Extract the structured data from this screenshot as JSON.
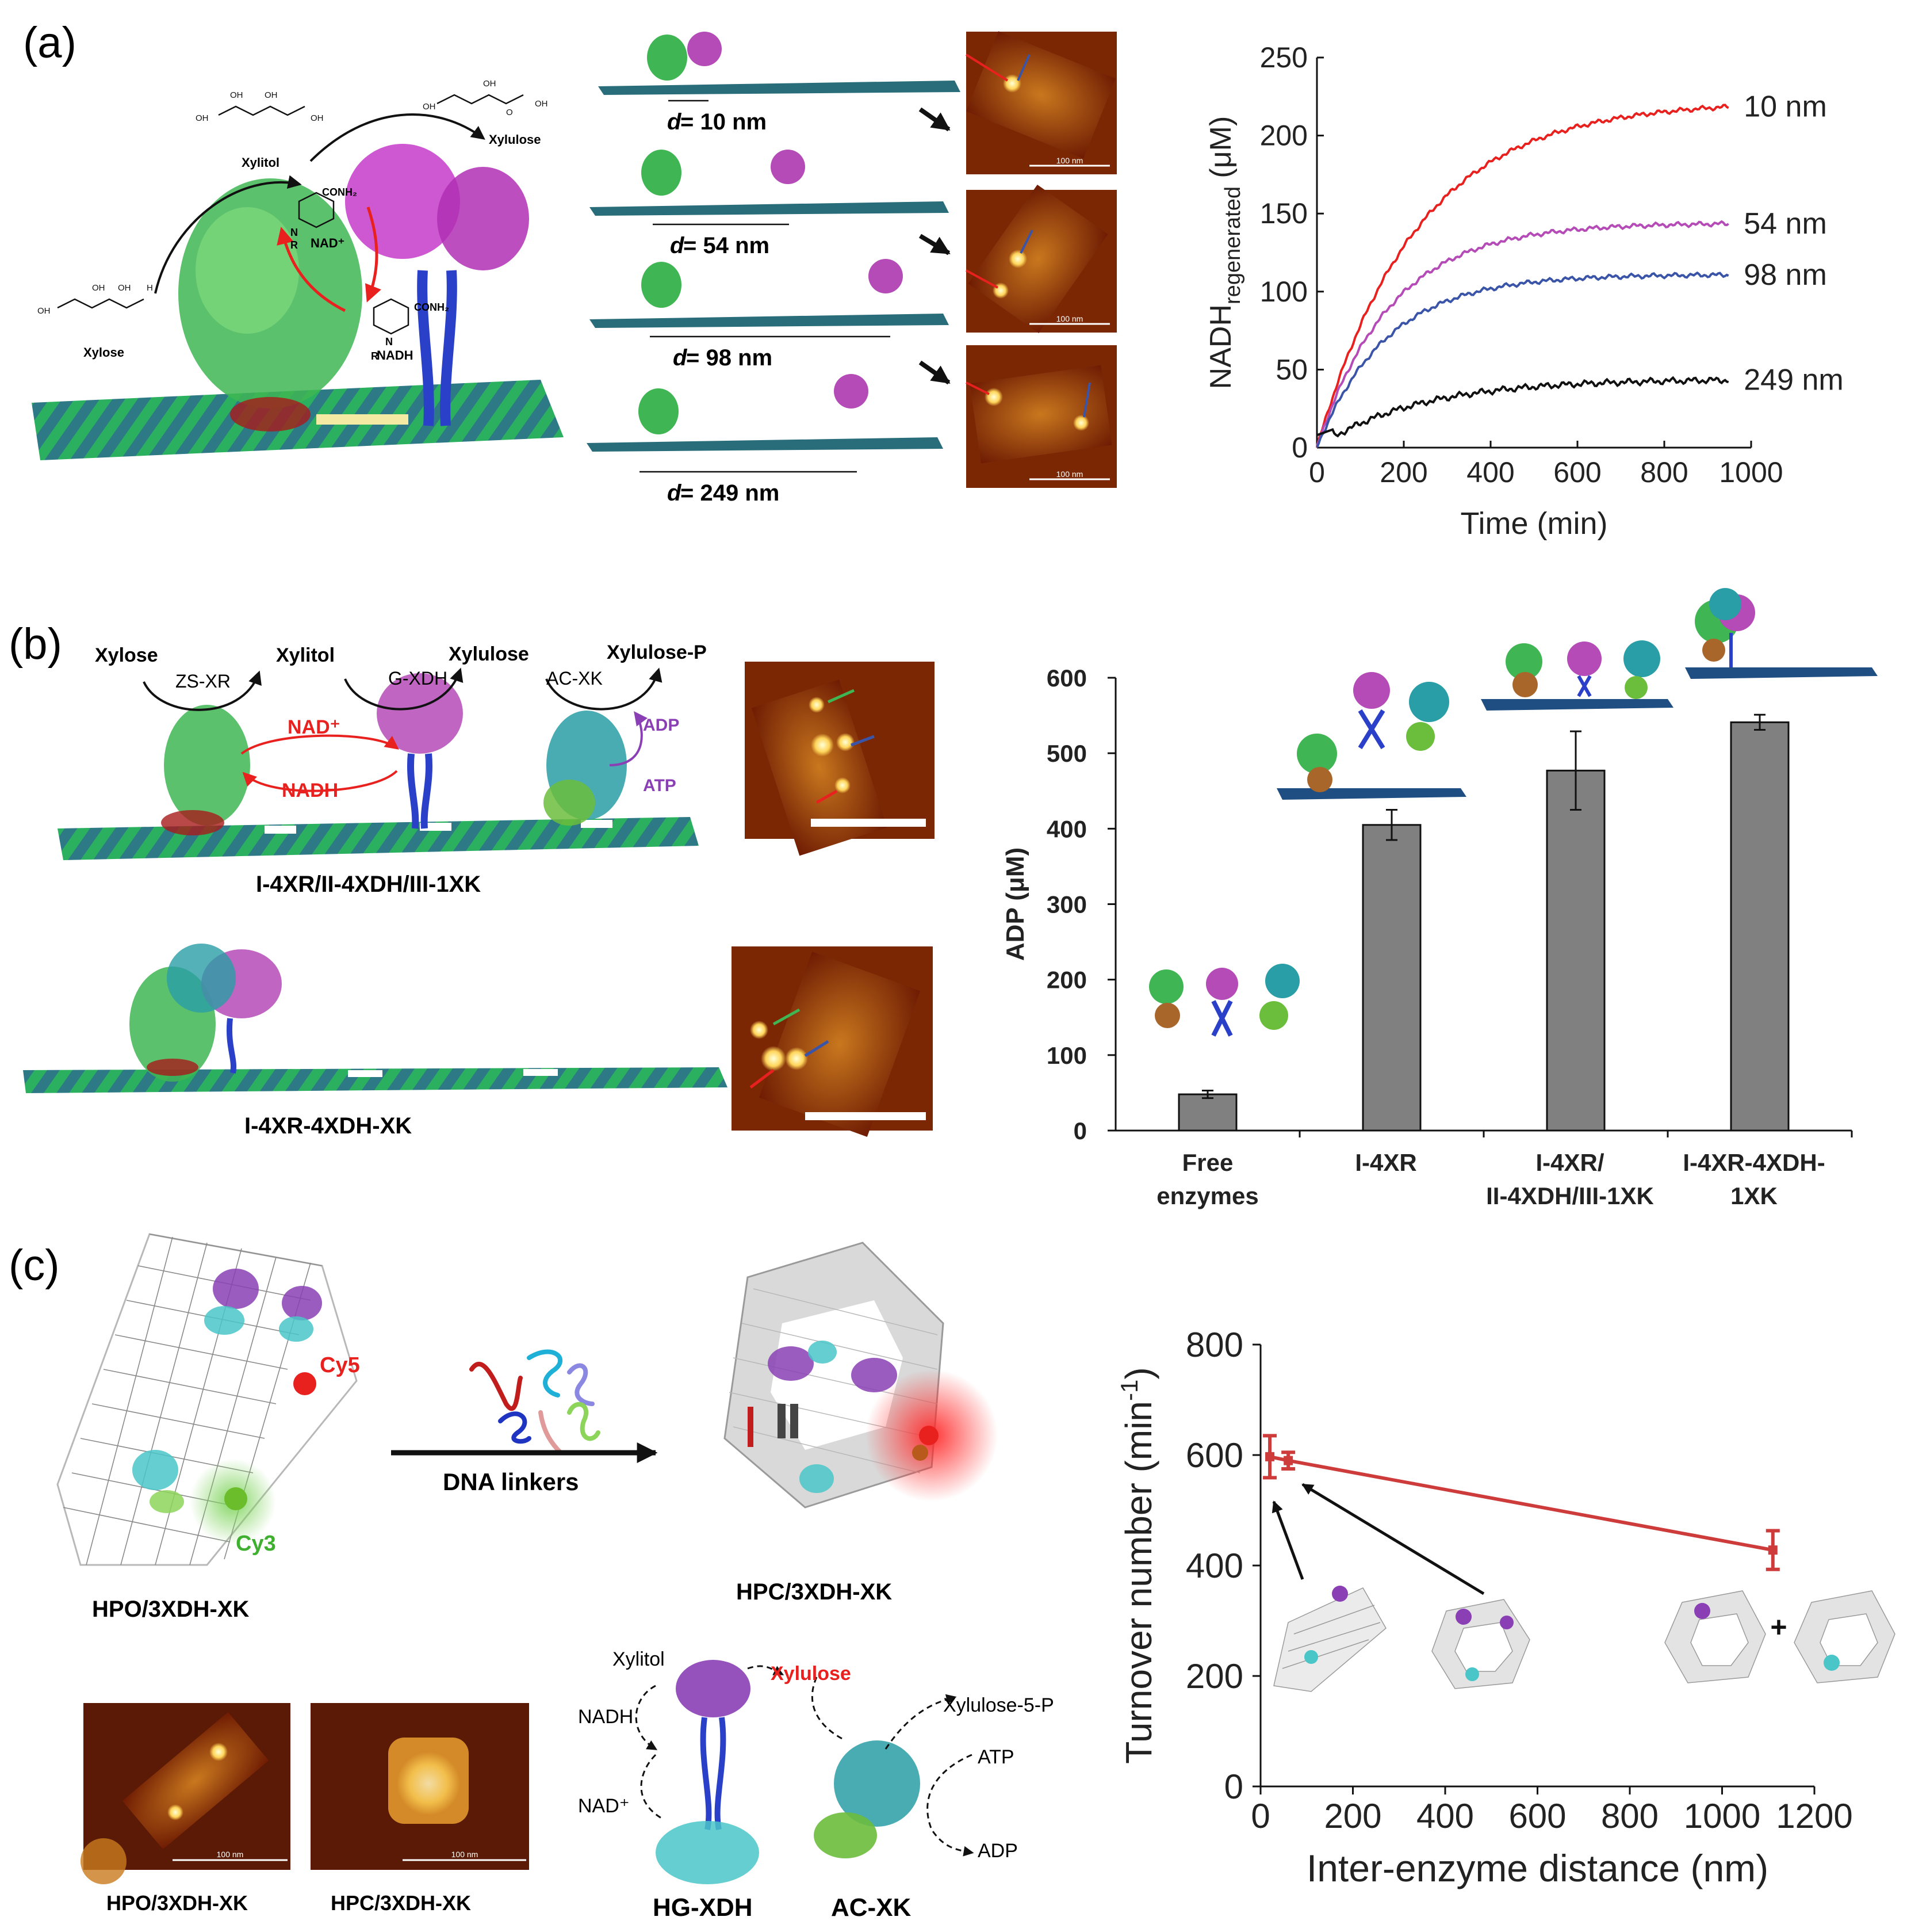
{
  "panels": {
    "a": {
      "letter": "(a)",
      "molecules": {
        "xylose": "Xylose",
        "xylitol": "Xylitol",
        "xylulose": "Xylulose",
        "nad": "NAD⁺",
        "nadh": "NADH",
        "conh2_a": "CONH₂",
        "conh2_b": "CONH₂",
        "r_a": "R",
        "r_b": "R",
        "n_a": "N",
        "n_b": "N",
        "oh": "OH",
        "h": "H",
        "o": "O"
      },
      "distances": [
        {
          "prefix": "d",
          "eq": " = 10 nm",
          "value": 10
        },
        {
          "prefix": "d",
          "eq": " = 54 nm",
          "value": 54
        },
        {
          "prefix": "d",
          "eq": " = 98 nm",
          "value": 98
        },
        {
          "prefix": "d",
          "eq": " = 249 nm",
          "value": 249
        }
      ],
      "afm_scale": "100 nm"
    },
    "b": {
      "letter": "(b)",
      "pathway": {
        "xylose": "Xylose",
        "xylitol": "Xylitol",
        "xylulose": "Xylulose",
        "xylulose_p": "Xylulose-P",
        "zs_xr": "ZS-XR",
        "g_xdh": "G-XDH",
        "ac_xk": "AC-XK",
        "nad": "NAD⁺",
        "nadh": "NADH",
        "adp": "ADP",
        "atp": "ATP"
      },
      "caption_1": "I-4XR/II-4XDH/III-1XK",
      "caption_2": "I-4XR-4XDH-XK"
    },
    "c": {
      "letter": "(c)",
      "cy5": "Cy5",
      "cy3": "Cy3",
      "linker": "DNA linkers",
      "open_label": "HPO/3XDH-XK",
      "closed_label": "HPC/3XDH-XK",
      "afm_left_label": "HPO/3XDH-XK",
      "afm_right_label": "HPC/3XDH-XK",
      "afm_scale": "100 nm",
      "scheme": {
        "xylitol": "Xylitol",
        "xylulose": "Xylulose",
        "xylulose5p": "Xylulose-5-P",
        "nadh": "NADH",
        "nad": "NAD⁺",
        "atp": "ATP",
        "adp": "ADP",
        "hg_xdh": "HG-XDH",
        "ac_xk": "AC-XK"
      },
      "plus": "+"
    }
  },
  "colors": {
    "red": "#e8211f",
    "magenta": "#b54bb7",
    "blue": "#3a54a8",
    "black": "#111111",
    "bar": "#808080",
    "turnover": "#cd3b3b",
    "origami": "#2a6d7a",
    "afm": "#8a2a05"
  },
  "chart_data": [
    {
      "type": "line",
      "xlabel": "Time (min)",
      "ylabel_main": "NADH",
      "ylabel_sub": "regenerated",
      "ylabel_unit": " (μM)",
      "xlim": [
        0,
        1000
      ],
      "ylim": [
        0,
        250
      ],
      "xticks": [
        0,
        200,
        400,
        600,
        800,
        1000
      ],
      "yticks": [
        0,
        50,
        100,
        150,
        200,
        250
      ],
      "t_end": 950,
      "series": [
        {
          "name": "10 nm",
          "color": "#e8211f",
          "plateau": 222,
          "tau": 230
        },
        {
          "name": "54 nm",
          "color": "#b54bb7",
          "plateau": 144,
          "tau": 170
        },
        {
          "name": "98 nm",
          "color": "#3a54a8",
          "plateau": 111,
          "tau": 160
        },
        {
          "name": "249 nm",
          "color": "#111111",
          "plateau": 44,
          "tau": 230
        }
      ]
    },
    {
      "type": "bar",
      "ylabel": "ADP (μM)",
      "ylim": [
        0,
        600
      ],
      "yticks": [
        0,
        100,
        200,
        300,
        400,
        500,
        600
      ],
      "categories": [
        [
          "Free",
          "enzymes"
        ],
        [
          "I-4XR"
        ],
        [
          "I-4XR/",
          "II-4XDH/III-1XK"
        ],
        [
          "I-4XR-4XDH-",
          "1XK"
        ]
      ],
      "values": [
        48,
        405,
        477,
        541
      ],
      "errors": [
        5,
        20,
        52,
        10
      ]
    },
    {
      "type": "line",
      "xlabel": "Inter-enzyme distance (nm)",
      "ylabel_main": "Turnover number (min",
      "ylabel_sup": "-1",
      "ylabel_end": ")",
      "xlim": [
        0,
        1200
      ],
      "ylim": [
        0,
        800
      ],
      "xticks": [
        0,
        200,
        400,
        600,
        800,
        1000,
        1200
      ],
      "yticks": [
        0,
        200,
        400,
        600,
        800
      ],
      "x": [
        20,
        60,
        1110
      ],
      "y": [
        597,
        590,
        428
      ],
      "errors": [
        38,
        15,
        35
      ]
    }
  ]
}
